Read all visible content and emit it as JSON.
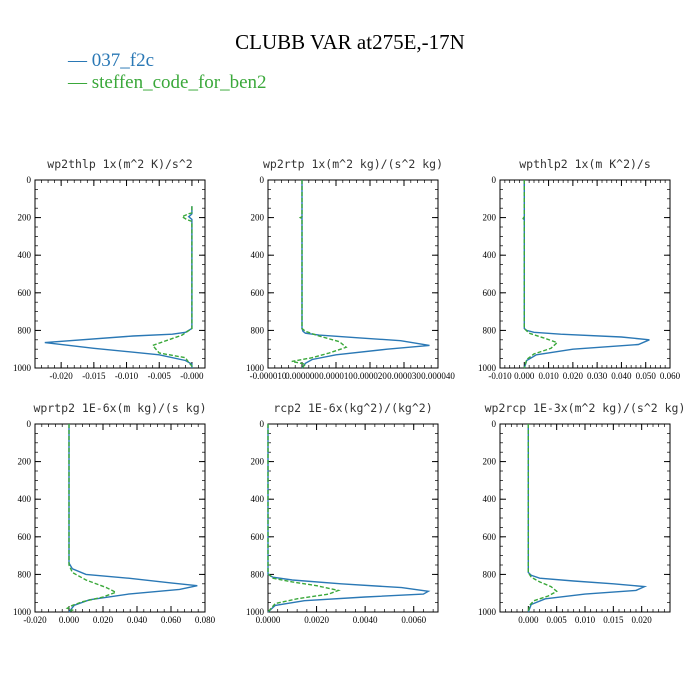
{
  "title": "CLUBB VAR at275E,-17N",
  "legend": [
    {
      "label": "— 037_f2c",
      "color": "#2a78b5"
    },
    {
      "label": "— steffen_code_for_ben2",
      "color": "#3aa83a"
    }
  ],
  "chart_data": [
    {
      "type": "line",
      "title": "wp2thlp   1x(m^2 K)/s^2",
      "xlim": [
        -0.024,
        0.002
      ],
      "ylim": [
        0,
        1000
      ],
      "xticks": [
        -0.02,
        -0.015,
        -0.01,
        -0.005,
        0.0
      ],
      "xticklabels": [
        "-0.020",
        "-0.015",
        "-0.010",
        "-0.005",
        "-0.000"
      ],
      "yticks": [
        0,
        200,
        400,
        600,
        800,
        1000
      ],
      "series": [
        {
          "name": "037_f2c",
          "color": "#2a78b5",
          "dashed": false,
          "x": [
            0,
            0,
            -0.0003,
            -0.0005,
            0,
            0,
            -0.001,
            -0.003,
            -0.009,
            -0.0225,
            -0.015,
            -0.005,
            -0.001,
            0,
            0
          ],
          "y": [
            140,
            180,
            190,
            195,
            210,
            790,
            810,
            820,
            830,
            865,
            895,
            930,
            960,
            980,
            1000
          ]
        },
        {
          "name": "steffen_code_for_ben2",
          "color": "#3aa83a",
          "dashed": true,
          "x": [
            0,
            0,
            -0.0005,
            -0.0015,
            -0.0008,
            0,
            0,
            -0.0015,
            -0.006,
            -0.005,
            -0.001,
            -0.0005,
            0,
            0
          ],
          "y": [
            140,
            175,
            180,
            195,
            210,
            220,
            790,
            825,
            880,
            920,
            945,
            970,
            990,
            1000
          ]
        }
      ]
    },
    {
      "type": "line",
      "title": "wp2rtp   1x(m^2 kg)/(s^2 kg)",
      "xlim": [
        -1e-05,
        4e-05
      ],
      "ylim": [
        0,
        1000
      ],
      "xticks": [
        -1e-05,
        0,
        1e-05,
        2e-05,
        3e-05,
        4e-05
      ],
      "xticklabels": [
        "-0.000010",
        "0.000000",
        "0.000010",
        "0.000020",
        "0.000030",
        "0.000040"
      ],
      "yticks": [
        0,
        200,
        400,
        600,
        800,
        1000
      ],
      "series": [
        {
          "name": "037_f2c",
          "color": "#2a78b5",
          "dashed": false,
          "x": [
            0,
            0,
            3e-07,
            1e-06,
            5e-06,
            1.7e-05,
            2.9e-05,
            3.75e-05,
            2.5e-05,
            1e-05,
            3e-06,
            1e-06,
            0
          ],
          "y": [
            0,
            790,
            805,
            815,
            825,
            840,
            855,
            880,
            900,
            930,
            955,
            975,
            1000
          ]
        },
        {
          "name": "steffen_code_for_ben2",
          "color": "#3aa83a",
          "dashed": true,
          "x": [
            0,
            0,
            -5e-07,
            0,
            0,
            1e-06,
            5e-06,
            1.1e-05,
            1.3e-05,
            8e-06,
            3e-06,
            -3e-06,
            1e-06,
            0
          ],
          "y": [
            0,
            195,
            200,
            205,
            790,
            805,
            830,
            860,
            890,
            920,
            945,
            965,
            980,
            1000
          ]
        }
      ]
    },
    {
      "type": "line",
      "title": "wpthlp2   1x(m K^2)/s",
      "xlim": [
        -0.01,
        0.06
      ],
      "ylim": [
        0,
        1000
      ],
      "xticks": [
        -0.01,
        0,
        0.01,
        0.02,
        0.03,
        0.04,
        0.05,
        0.06
      ],
      "xticklabels": [
        "-0.010",
        "0.000",
        "0.010",
        "0.020",
        "0.030",
        "0.040",
        "0.050",
        "0.060"
      ],
      "yticks": [
        0,
        200,
        400,
        600,
        800,
        1000
      ],
      "series": [
        {
          "name": "037_f2c",
          "color": "#2a78b5",
          "dashed": false,
          "x": [
            0,
            0,
            0.001,
            0.004,
            0.015,
            0.04,
            0.0515,
            0.047,
            0.02,
            0.005,
            0.001,
            0
          ],
          "y": [
            0,
            790,
            800,
            810,
            820,
            835,
            850,
            875,
            900,
            930,
            960,
            1000
          ]
        },
        {
          "name": "steffen_code_for_ben2",
          "color": "#3aa83a",
          "dashed": true,
          "x": [
            0,
            0,
            -0.0005,
            0,
            0,
            0.002,
            0.008,
            0.0135,
            0.011,
            0.004,
            0.001,
            0
          ],
          "y": [
            0,
            195,
            205,
            215,
            790,
            815,
            840,
            865,
            895,
            925,
            955,
            1000
          ]
        }
      ]
    },
    {
      "type": "line",
      "title": "wprtp2   1E-6x(m kg)/(s kg)",
      "xlim": [
        -0.02,
        0.08
      ],
      "ylim": [
        0,
        1000
      ],
      "xticks": [
        -0.02,
        0,
        0.02,
        0.04,
        0.06,
        0.08
      ],
      "xticklabels": [
        "-0.020",
        "0.000",
        "0.020",
        "0.040",
        "0.060",
        "0.080"
      ],
      "yticks": [
        0,
        200,
        400,
        600,
        800,
        1000
      ],
      "series": [
        {
          "name": "037_f2c",
          "color": "#2a78b5",
          "dashed": false,
          "x": [
            0,
            0,
            0.002,
            0.01,
            0.035,
            0.06,
            0.0755,
            0.065,
            0.035,
            0.012,
            0.003,
            0
          ],
          "y": [
            0,
            740,
            770,
            800,
            820,
            845,
            860,
            880,
            905,
            935,
            965,
            1000
          ]
        },
        {
          "name": "steffen_code_for_ben2",
          "color": "#3aa83a",
          "dashed": true,
          "x": [
            0,
            0,
            0.002,
            0.01,
            0.022,
            0.0275,
            0.02,
            0.008,
            0.002,
            -0.001,
            0.002,
            0
          ],
          "y": [
            0,
            750,
            790,
            830,
            870,
            895,
            920,
            945,
            965,
            980,
            990,
            1000
          ]
        }
      ]
    },
    {
      "type": "line",
      "title": "rcp2   1E-6x(kg^2)/(kg^2)",
      "xlim": [
        0,
        0.007
      ],
      "ylim": [
        0,
        1000
      ],
      "xticks": [
        0,
        0.002,
        0.004,
        0.006
      ],
      "xticklabels": [
        "0.0000",
        "0.0020",
        "0.0040",
        "0.0060"
      ],
      "yticks": [
        0,
        200,
        400,
        600,
        800,
        1000
      ],
      "series": [
        {
          "name": "037_f2c",
          "color": "#2a78b5",
          "dashed": false,
          "x": [
            0,
            0,
            0.0002,
            0.001,
            0.003,
            0.0055,
            0.0066,
            0.0064,
            0.004,
            0.0015,
            0.0003,
            0
          ],
          "y": [
            0,
            800,
            815,
            830,
            850,
            870,
            890,
            905,
            920,
            940,
            965,
            1000
          ]
        },
        {
          "name": "steffen_code_for_ben2",
          "color": "#3aa83a",
          "dashed": true,
          "x": [
            0,
            0,
            0.0002,
            0.001,
            0.002,
            0.0029,
            0.0025,
            0.0012,
            0.0003,
            0
          ],
          "y": [
            0,
            795,
            820,
            840,
            860,
            885,
            905,
            930,
            955,
            1000
          ]
        }
      ]
    },
    {
      "type": "line",
      "title": "wp2rcp   1E-3x(m^2 kg)/(s^2 kg)",
      "xlim": [
        -0.005,
        0.025
      ],
      "ylim": [
        0,
        1000
      ],
      "xticks": [
        0,
        0.005,
        0.01,
        0.015,
        0.02
      ],
      "xticklabels": [
        "0.000",
        "0.005",
        "0.010",
        "0.015",
        "0.020"
      ],
      "yticks": [
        0,
        200,
        400,
        600,
        800,
        1000
      ],
      "series": [
        {
          "name": "037_f2c",
          "color": "#2a78b5",
          "dashed": false,
          "x": [
            0,
            0,
            0.0005,
            0.002,
            0.008,
            0.015,
            0.0205,
            0.019,
            0.01,
            0.003,
            0.0005,
            0
          ],
          "y": [
            0,
            790,
            805,
            820,
            835,
            850,
            865,
            885,
            905,
            930,
            960,
            1000
          ]
        },
        {
          "name": "steffen_code_for_ben2",
          "color": "#3aa83a",
          "dashed": true,
          "x": [
            0,
            0,
            0.0005,
            0.002,
            0.004,
            0.005,
            0.0035,
            0.001,
            0.0002,
            0
          ],
          "y": [
            0,
            790,
            815,
            840,
            865,
            890,
            915,
            940,
            965,
            1000
          ]
        }
      ]
    }
  ]
}
